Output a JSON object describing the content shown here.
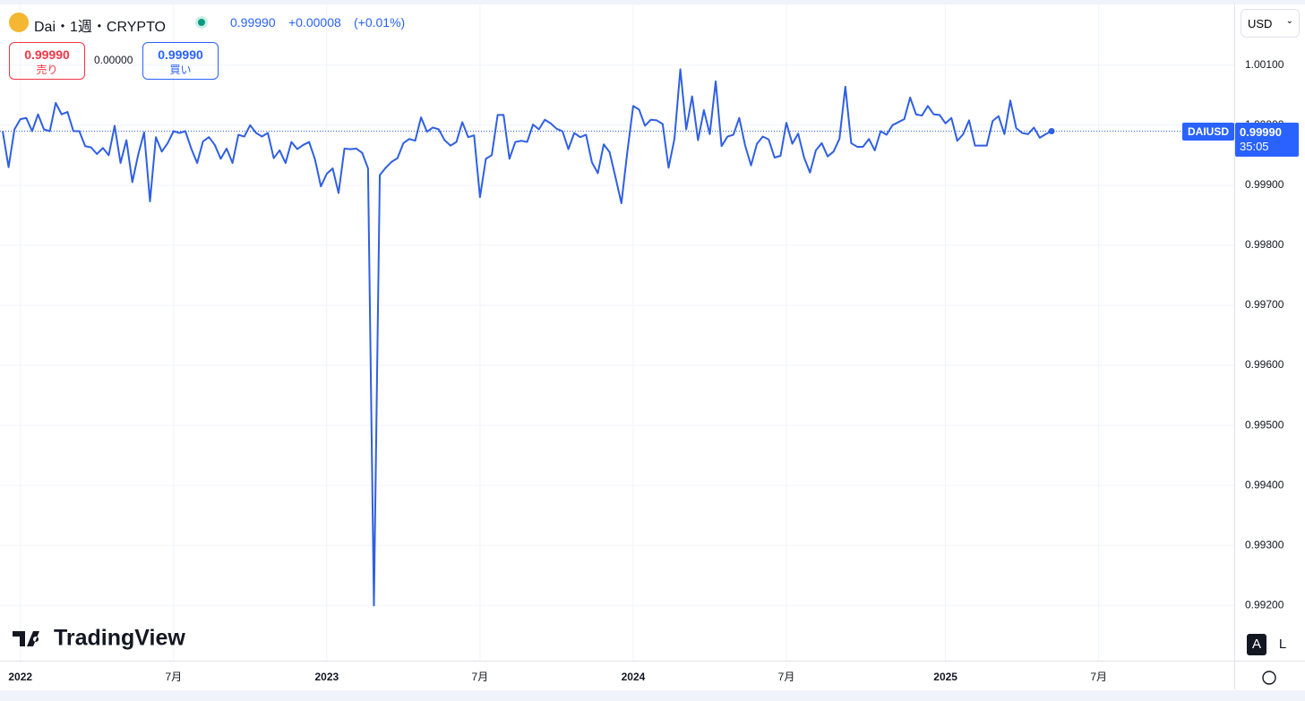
{
  "chart_data": {
    "type": "line",
    "title": "Dai・1週・CRYPTO",
    "last_price": "0.99990",
    "change": "+0.00008",
    "change_pct": "(+0.01%)",
    "sell_price": "0.99990",
    "sell_label": "売り",
    "spread": "0.00000",
    "buy_price": "0.99990",
    "buy_label": "買い",
    "currency": "USD",
    "symbol": "DAIUSD",
    "countdown": "35:05",
    "brand": "TradingView",
    "auto_label": "A",
    "log_label": "L",
    "categories": [
      null,
      null,
      null,
      "2022",
      null,
      null,
      null,
      null,
      null,
      null,
      null,
      null,
      null,
      null,
      null,
      null,
      null,
      null,
      null,
      null,
      null,
      null,
      null,
      null,
      null,
      null,
      null,
      null,
      null,
      "7月",
      null,
      null,
      null,
      null,
      null,
      null,
      null,
      null,
      null,
      null,
      null,
      null,
      null,
      null,
      null,
      null,
      null,
      null,
      null,
      null,
      null,
      null,
      null,
      null,
      null,
      "2023",
      null,
      null,
      null,
      null,
      null,
      null,
      null,
      null,
      null,
      null,
      null,
      null,
      null,
      null,
      null,
      null,
      null,
      null,
      null,
      null,
      null,
      null,
      null,
      null,
      null,
      "7月",
      null,
      null,
      null,
      null,
      null,
      null,
      null,
      null,
      null,
      null,
      null,
      null,
      null,
      null,
      null,
      null,
      null,
      null,
      null,
      null,
      null,
      null,
      null,
      null,
      null,
      "2024",
      null,
      null,
      null,
      null,
      null,
      null,
      null,
      null,
      null,
      null,
      null,
      null,
      null,
      null,
      null,
      null,
      null,
      null,
      null,
      null,
      null,
      null,
      null,
      null,
      null,
      "7月",
      null,
      null,
      null,
      null,
      null,
      null,
      null,
      null,
      null,
      null,
      null,
      null,
      null,
      null,
      null,
      null,
      null,
      null,
      null,
      null,
      null,
      null,
      null,
      null,
      null,
      null,
      "2025",
      null,
      null,
      null,
      null,
      null,
      null,
      null,
      null,
      null,
      null,
      null,
      null,
      null,
      null,
      null,
      null,
      null,
      null,
      null,
      null,
      null,
      null,
      null,
      null,
      null,
      "7月",
      null,
      null,
      null,
      null,
      null,
      null,
      null,
      null,
      null,
      null,
      null,
      null,
      null,
      null,
      null,
      null,
      null,
      null,
      null,
      null,
      null,
      null,
      null
    ],
    "series": [
      {
        "name": "DAIUSD",
        "color": "#2f5fe3",
        "values": [
          0.9999,
          0.9993,
          0.99993,
          1.0001,
          1.00012,
          0.9999,
          1.00018,
          0.99993,
          0.9999,
          1.00037,
          1.00018,
          1.00022,
          0.9999,
          0.9999,
          0.99965,
          0.99963,
          0.99952,
          0.99962,
          0.9995,
          0.99999,
          0.99937,
          0.99975,
          0.99905,
          0.99951,
          0.99988,
          0.99873,
          0.9998,
          0.99956,
          0.9997,
          0.9999,
          0.99987,
          0.9999,
          0.99961,
          0.99937,
          0.99973,
          0.9998,
          0.99967,
          0.99944,
          0.99961,
          0.99937,
          0.99984,
          0.99981,
          1.0,
          0.99987,
          0.99981,
          0.99987,
          0.99945,
          0.99958,
          0.99937,
          0.99972,
          0.9996,
          0.99967,
          0.99972,
          0.99943,
          0.99898,
          0.99919,
          0.99928,
          0.99887,
          0.99961,
          0.9996,
          0.99961,
          0.99954,
          0.99928,
          0.992,
          0.99917,
          0.99929,
          0.99939,
          0.99945,
          0.9997,
          0.99977,
          0.99974,
          1.00013,
          0.99989,
          0.99996,
          0.99993,
          0.99975,
          0.99966,
          0.99972,
          1.00005,
          0.9998,
          0.99983,
          0.9988,
          0.99944,
          0.9995,
          1.00017,
          1.00017,
          0.99944,
          0.99972,
          0.99974,
          0.99972,
          1.00001,
          0.99993,
          1.00009,
          1.00003,
          0.99994,
          0.9999,
          0.9996,
          0.99987,
          0.9998,
          0.99984,
          0.99938,
          0.9992,
          0.99968,
          0.99955,
          0.99913,
          0.9987,
          0.99955,
          1.00032,
          1.00026,
          0.99999,
          1.00009,
          1.00008,
          1.00002,
          0.99929,
          0.99977,
          1.00093,
          0.99993,
          1.00048,
          0.99975,
          1.00025,
          0.99985,
          1.00073,
          0.99965,
          0.99981,
          0.99984,
          1.00012,
          0.99966,
          0.99933,
          0.99969,
          0.99981,
          0.99976,
          0.99946,
          0.99949,
          1.00004,
          0.99969,
          0.99986,
          0.99946,
          0.99921,
          0.99958,
          0.9997,
          0.99948,
          0.99956,
          0.99977,
          1.00064,
          0.9997,
          0.99964,
          0.99964,
          0.99977,
          0.99958,
          0.9999,
          0.99984,
          1.0,
          1.00005,
          1.0001,
          1.00046,
          1.00018,
          1.00016,
          1.00032,
          1.00018,
          1.00017,
          1.00003,
          1.00012,
          0.99974,
          0.99985,
          1.00008,
          0.99966,
          0.99966,
          0.99966,
          1.00007,
          1.00015,
          0.99985,
          1.00041,
          0.99995,
          0.99987,
          0.99985,
          0.99996,
          0.99979,
          0.99985,
          0.9999,
          null,
          null,
          null,
          null,
          null,
          null,
          null,
          null,
          null,
          null,
          null,
          null,
          null,
          null,
          null,
          null,
          null,
          null,
          null,
          null,
          null,
          null,
          null,
          null,
          null,
          null,
          null,
          null,
          null,
          null,
          null
        ]
      }
    ],
    "ylim": [
      0.99108,
      1.00201
    ],
    "yticks": [
      {
        "value": 1.001,
        "label": "1.00100"
      },
      {
        "value": 1.0,
        "label": "1.00000"
      },
      {
        "value": 0.999,
        "label": "0.99900"
      },
      {
        "value": 0.998,
        "label": "0.99800"
      },
      {
        "value": 0.997,
        "label": "0.99700"
      },
      {
        "value": 0.996,
        "label": "0.99600"
      },
      {
        "value": 0.995,
        "label": "0.99500"
      },
      {
        "value": 0.994,
        "label": "0.99400"
      },
      {
        "value": 0.993,
        "label": "0.99300"
      },
      {
        "value": 0.992,
        "label": "0.99200"
      }
    ],
    "grid": true
  }
}
